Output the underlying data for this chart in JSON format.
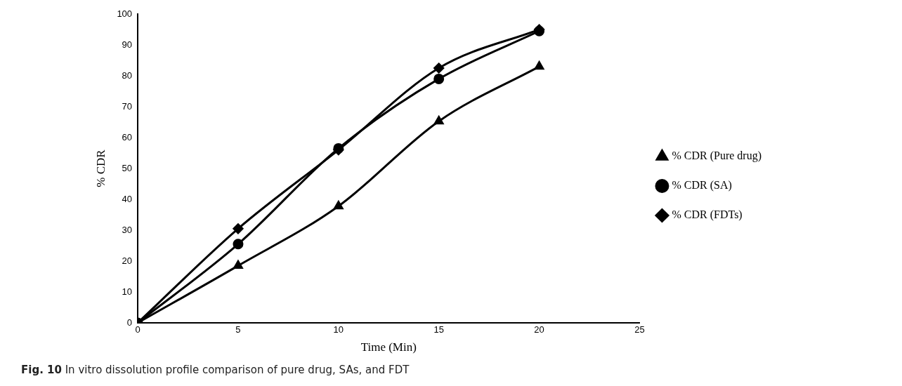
{
  "chart_data": {
    "type": "line",
    "xlabel": "Time (Min)",
    "ylabel": "% CDR",
    "x": [
      0,
      5,
      10,
      15,
      20
    ],
    "xlim": [
      0,
      25
    ],
    "xticks": [
      0,
      5,
      10,
      15,
      20,
      25
    ],
    "ylim": [
      0,
      100
    ],
    "yticks": [
      0,
      10,
      20,
      30,
      40,
      50,
      60,
      70,
      80,
      90,
      100
    ],
    "grid": false,
    "legend": "right",
    "line_style": "solid",
    "series": [
      {
        "name": "% CDR (Pure drug)",
        "color": "#000000",
        "marker": "triangle",
        "values": [
          0,
          18.5,
          37.8,
          65.3,
          83
        ]
      },
      {
        "name": "% CDR (SA)",
        "color": "#000000",
        "marker": "circle",
        "values": [
          0,
          25.5,
          56.5,
          79,
          94.5
        ]
      },
      {
        "name": "% CDR (FDTs)",
        "color": "#000000",
        "marker": "diamond",
        "values": [
          0,
          30.5,
          56,
          82.5,
          95
        ]
      }
    ],
    "annotations": [
      "Fig. 10  In vitro dissolution profile comparison of pure drug, SAs, and FDT"
    ]
  }
}
